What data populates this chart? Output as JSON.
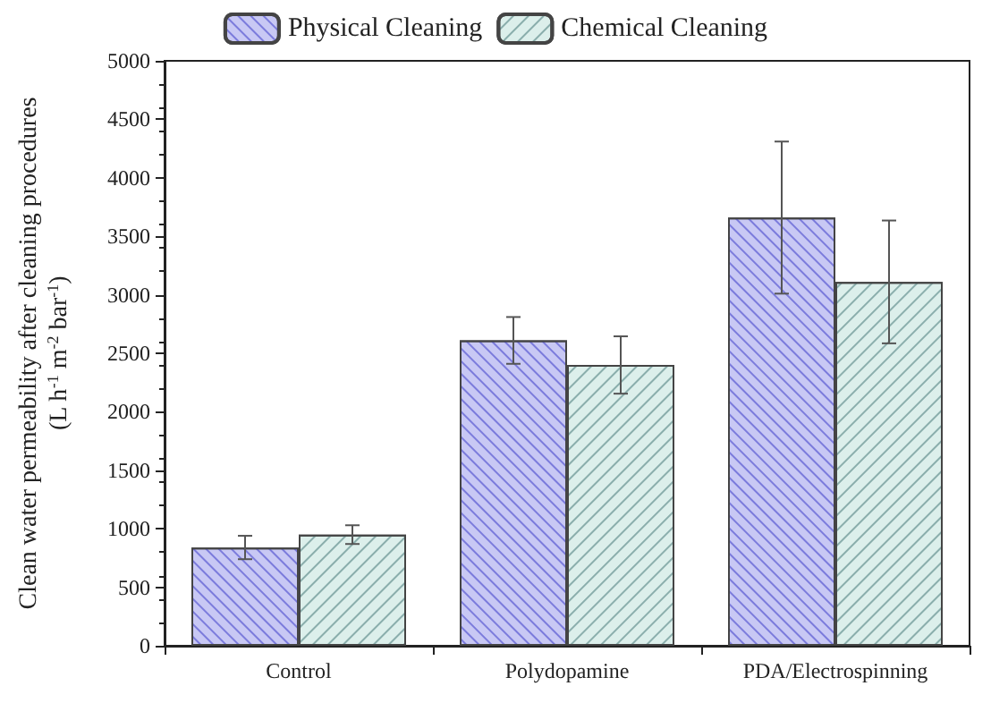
{
  "chart_data": {
    "type": "bar",
    "ylabel": "Clean water permeability after cleaning procedures\n(L h$^{-1}$ m$^{-2}$ bar$^{-1}$)",
    "categories": [
      "Control",
      "Polydopamine",
      "PDA/Electrospinning"
    ],
    "series": [
      {
        "name": "Physical Cleaning",
        "color": "#c8c8f4",
        "values": [
          840,
          2610,
          3660
        ],
        "errors": [
          100,
          200,
          650
        ]
      },
      {
        "name": "Chemical Cleaning",
        "color": "#dcefeb",
        "values": [
          950,
          2400,
          3110
        ],
        "errors": [
          80,
          245,
          525
        ]
      }
    ],
    "ylim": [
      0,
      5000
    ],
    "yticks": [
      0,
      500,
      1000,
      1500,
      2000,
      2500,
      3000,
      3500,
      4000,
      4500,
      5000
    ],
    "grid": false,
    "legend": "top"
  }
}
